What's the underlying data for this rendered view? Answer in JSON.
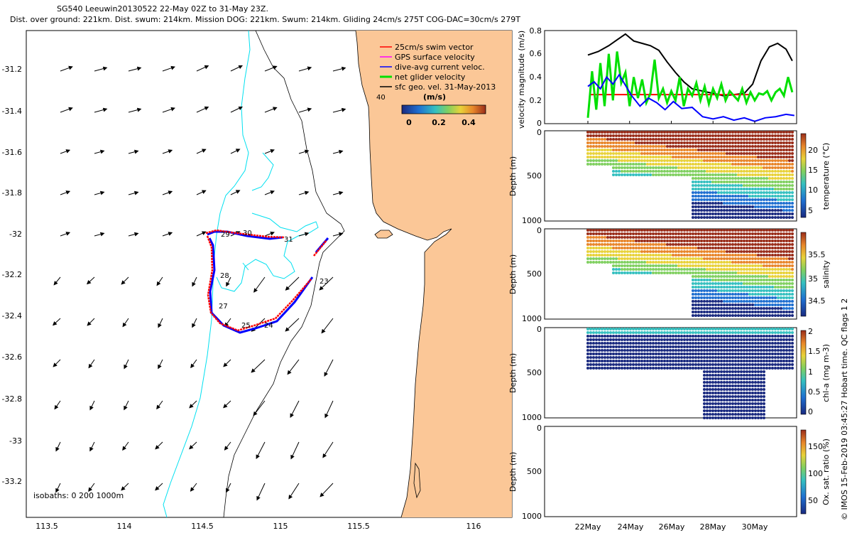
{
  "header": {
    "title_line1": "SG540 Leeuwin20130522 22-May 02Z to 31-May 23Z.",
    "title_line2": "Dist. over ground: 221km. Dist. swum: 214km. Mission DOG: 221km. Swum: 214km. Gliding 24cm/s 275T COG-DAC=30cm/s 279T"
  },
  "credit": "© IMOS 15-Feb-2019 03:45:27 Hobart time. QC flags 1  2",
  "colors": {
    "land": "#fbc797",
    "track": "#ff0000",
    "dac": "#0000ff",
    "gps": "#ff00ff",
    "net": "#00e000",
    "geo": "#000000",
    "isobath_0": "#000000",
    "isobath_200": "#000000",
    "isobath_1000": "#00e0f0"
  },
  "map": {
    "x_ticks": [
      "113.5",
      "114",
      "114.5",
      "115",
      "115.5",
      "116"
    ],
    "y_ticks": [
      "-31.2",
      "-31.4",
      "-31.6",
      "-31.8",
      "-32",
      "-32.2",
      "-32.4",
      "-32.6",
      "-32.8",
      "-33",
      "-33.2"
    ],
    "isobath_label": "isobaths: 0   200  1000m",
    "legend": [
      {
        "label": "25cm/s swim vector",
        "color": "#ff0000"
      },
      {
        "label": "GPS surface velocity",
        "color": "#ff00ff"
      },
      {
        "label": "dive-avg current veloc.",
        "color": "#0000ff"
      },
      {
        "label": "net glider velocity",
        "color": "#00e000"
      },
      {
        "label": "sfc geo. vel. 31-May-2013",
        "color": "#000000"
      }
    ],
    "speed_scale": {
      "title": "(m/s)",
      "ticks": [
        "0",
        "0.2",
        "0.4"
      ]
    },
    "day_labels": [
      "23",
      "24",
      "25",
      "27",
      "28",
      "29",
      "30",
      "31",
      "40"
    ]
  },
  "chart_data": [
    {
      "type": "line",
      "ylabel": "velocity magnitude (m/s)",
      "ylim": [
        0,
        0.8
      ],
      "y_ticks": [
        "0",
        "0.2",
        "0.4",
        "0.6",
        "0.8"
      ],
      "x_ticks": [
        "22May",
        "24May",
        "26May",
        "28May",
        "30May"
      ],
      "x_tick_days": [
        22,
        24,
        26,
        28,
        30
      ],
      "xlim": [
        20.0,
        32.0
      ],
      "series": [
        {
          "color": "#000000",
          "x": [
            22,
            22.5,
            23,
            23.4,
            23.8,
            24.2,
            24.6,
            25.0,
            25.4,
            25.8,
            26.2,
            26.6,
            27.0,
            27.5,
            28.0,
            28.5,
            29.0,
            29.5,
            29.9,
            30.3,
            30.7,
            31.1,
            31.5,
            31.8
          ],
          "values": [
            0.59,
            0.62,
            0.67,
            0.72,
            0.77,
            0.71,
            0.69,
            0.67,
            0.63,
            0.53,
            0.44,
            0.36,
            0.3,
            0.28,
            0.26,
            0.24,
            0.25,
            0.26,
            0.34,
            0.54,
            0.66,
            0.69,
            0.64,
            0.54
          ]
        },
        {
          "color": "#ff0000",
          "x": [
            22.1,
            29.9
          ],
          "values": [
            0.25,
            0.25
          ]
        },
        {
          "color": "#00e000",
          "x": [
            22.0,
            22.2,
            22.4,
            22.6,
            22.8,
            23.0,
            23.2,
            23.4,
            23.6,
            23.8,
            24.0,
            24.2,
            24.4,
            24.6,
            24.8,
            25.0,
            25.2,
            25.4,
            25.6,
            25.8,
            26.0,
            26.2,
            26.4,
            26.6,
            26.8,
            27.0,
            27.2,
            27.4,
            27.6,
            27.8,
            28.0,
            28.2,
            28.4,
            28.6,
            28.8,
            29.0,
            29.2,
            29.4,
            29.6,
            29.8,
            30.0,
            30.2,
            30.4,
            30.6,
            30.8,
            31.0,
            31.2,
            31.4,
            31.6,
            31.8
          ],
          "values": [
            0.05,
            0.45,
            0.12,
            0.52,
            0.15,
            0.6,
            0.2,
            0.62,
            0.35,
            0.44,
            0.15,
            0.4,
            0.22,
            0.38,
            0.18,
            0.26,
            0.55,
            0.22,
            0.3,
            0.18,
            0.28,
            0.2,
            0.4,
            0.15,
            0.3,
            0.24,
            0.35,
            0.2,
            0.32,
            0.17,
            0.3,
            0.22,
            0.34,
            0.2,
            0.28,
            0.24,
            0.2,
            0.3,
            0.18,
            0.27,
            0.2,
            0.26,
            0.25,
            0.28,
            0.2,
            0.27,
            0.3,
            0.24,
            0.4,
            0.27
          ]
        },
        {
          "color": "#0000ff",
          "x": [
            22,
            22.3,
            22.6,
            22.9,
            23.2,
            23.5,
            23.8,
            24.1,
            24.5,
            24.9,
            25.3,
            25.7,
            26.1,
            26.5,
            27.0,
            27.5,
            28.0,
            28.5,
            29.0,
            29.5,
            30.0,
            30.5,
            31.0,
            31.5,
            31.9
          ],
          "values": [
            0.32,
            0.36,
            0.3,
            0.4,
            0.34,
            0.42,
            0.33,
            0.24,
            0.15,
            0.22,
            0.18,
            0.12,
            0.19,
            0.13,
            0.14,
            0.06,
            0.04,
            0.06,
            0.03,
            0.05,
            0.02,
            0.05,
            0.06,
            0.08,
            0.07
          ]
        }
      ]
    },
    {
      "type": "heatmap",
      "ylabel": "Depth (m)",
      "ylim": [
        1000,
        0
      ],
      "y_ticks": [
        "0",
        "500",
        "1000"
      ],
      "colorbar_label": "temperature (°C)",
      "colorbar_ticks": [
        "5",
        "10",
        "15",
        "20"
      ],
      "clim": [
        3,
        24
      ]
    },
    {
      "type": "heatmap",
      "ylabel": "Depth (m)",
      "ylim": [
        1000,
        0
      ],
      "y_ticks": [
        "0",
        "500",
        "1000"
      ],
      "colorbar_label": "salinity",
      "colorbar_ticks": [
        "34.5",
        "35",
        "35.5"
      ],
      "clim": [
        34.3,
        36.0
      ]
    },
    {
      "type": "heatmap",
      "ylabel": "Depth (m)",
      "ylim": [
        1000,
        0
      ],
      "y_ticks": [
        "0",
        "500",
        "1000"
      ],
      "colorbar_label": "chl-a (mg m-3)",
      "colorbar_ticks": [
        "0",
        "0.5",
        "1",
        "1.5",
        "2"
      ],
      "clim": [
        0,
        2
      ]
    },
    {
      "type": "heatmap",
      "ylabel": "Depth (m)",
      "ylim": [
        1000,
        0
      ],
      "y_ticks": [
        "0",
        "500",
        "1000"
      ],
      "colorbar_label": "Ox. sat. ratio (%)",
      "colorbar_ticks": [
        "50",
        "100",
        "150"
      ],
      "clim": [
        20,
        175
      ]
    }
  ]
}
